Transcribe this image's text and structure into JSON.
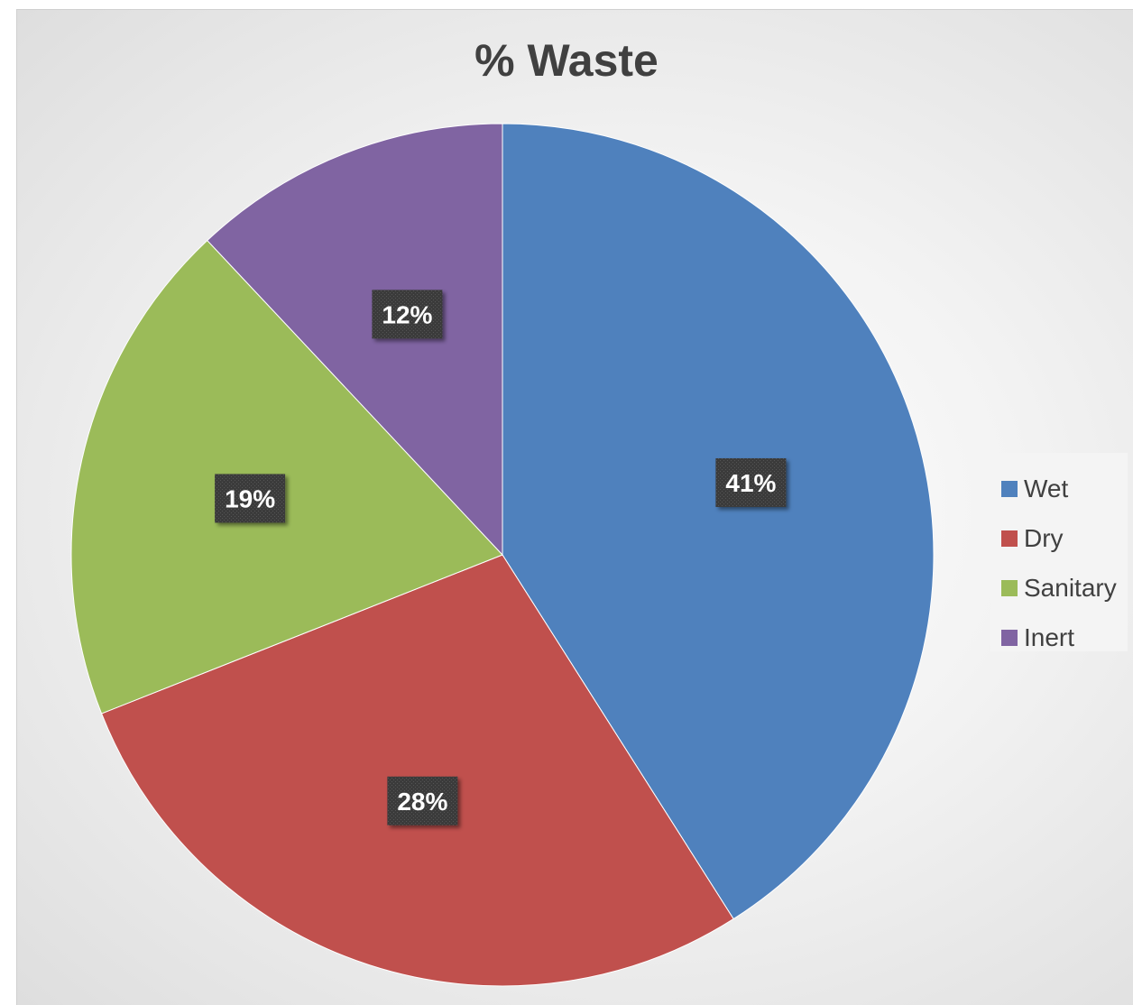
{
  "chart_data": {
    "type": "pie",
    "title": "% Waste",
    "categories": [
      "Wet",
      "Dry",
      "Sanitary",
      "Inert"
    ],
    "values": [
      41,
      28,
      19,
      12
    ],
    "data_labels": [
      "41%",
      "28%",
      "19%",
      "12%"
    ],
    "colors": [
      "#4f81bd",
      "#c0504d",
      "#9bbb59",
      "#8064a2"
    ],
    "legend_position": "right",
    "start_angle": "12 o'clock",
    "direction": "clockwise"
  }
}
